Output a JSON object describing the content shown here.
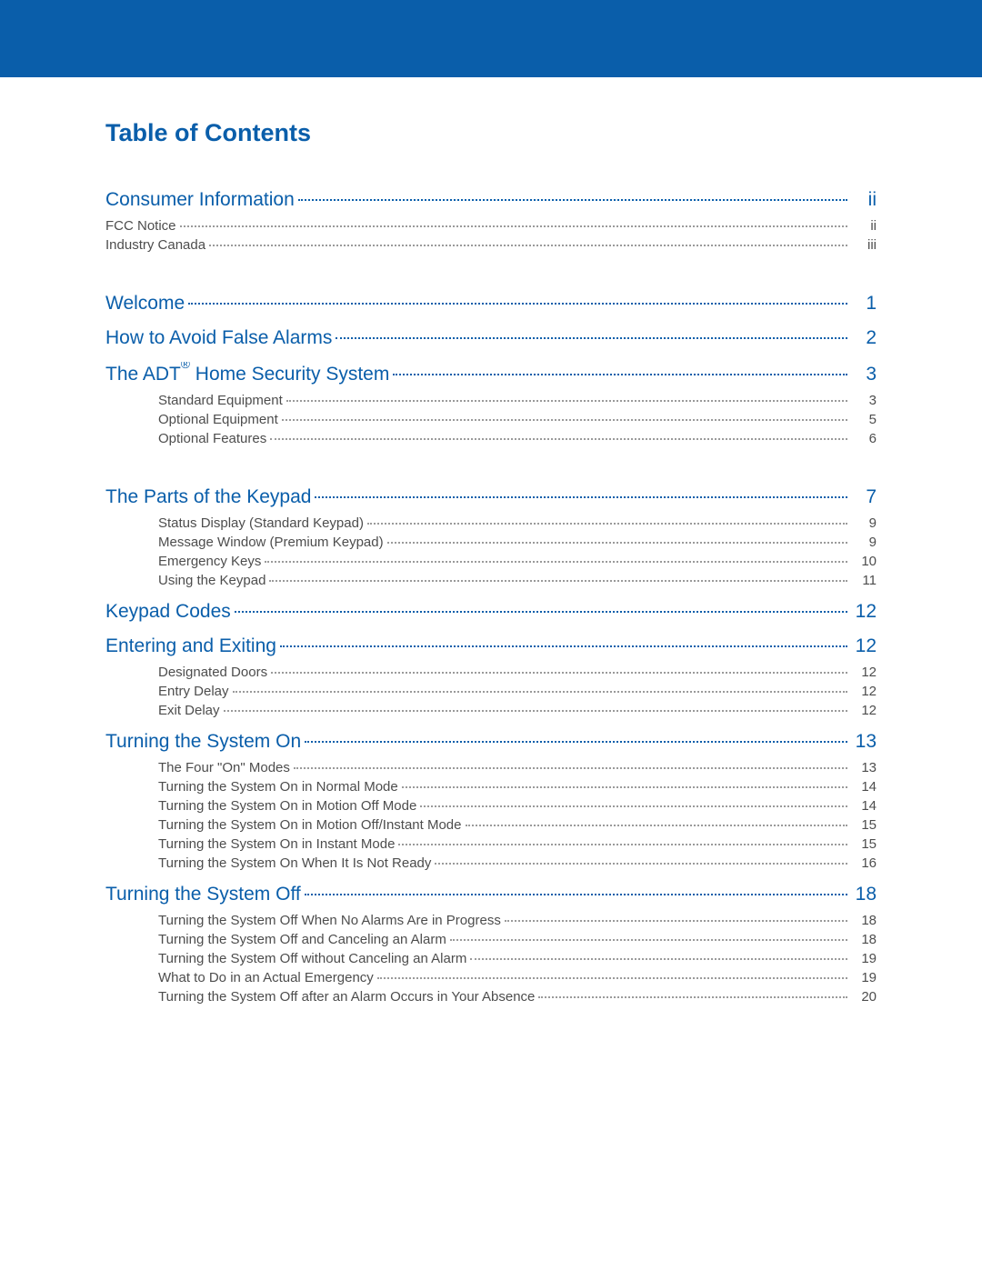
{
  "colors": {
    "brand_blue": "#0a5eaa",
    "body_text": "#4d4d4d",
    "dot_sub": "#9a9a9a",
    "background": "#ffffff"
  },
  "typography": {
    "title_fontsize": 27,
    "heading_fontsize": 21,
    "sub_fontsize": 15,
    "font_family": "Arial"
  },
  "title": "Table of Contents",
  "entries": [
    {
      "type": "heading",
      "label": "Consumer Information",
      "page": "ii"
    },
    {
      "type": "sub",
      "indent": 1,
      "label": "FCC Notice",
      "page": "ii"
    },
    {
      "type": "sub",
      "indent": 1,
      "label": "Industry Canada",
      "page": "iii"
    },
    {
      "type": "heading",
      "label": "Welcome",
      "page": "1",
      "gap_before": true
    },
    {
      "type": "heading",
      "label": "How to Avoid False Alarms",
      "page": "2"
    },
    {
      "type": "heading",
      "label_html": "The ADT<sup>®</sup> Home Security System",
      "label": "The ADT® Home Security System",
      "page": "3"
    },
    {
      "type": "sub",
      "indent": 2,
      "label": "Standard Equipment",
      "page": "3"
    },
    {
      "type": "sub",
      "indent": 2,
      "label": "Optional Equipment",
      "page": "5"
    },
    {
      "type": "sub",
      "indent": 2,
      "label": "Optional Features",
      "page": "6"
    },
    {
      "type": "heading",
      "label": "The Parts of the Keypad",
      "page": "7",
      "gap_before": true
    },
    {
      "type": "sub",
      "indent": 2,
      "label": "Status Display (Standard Keypad)",
      "page": "9"
    },
    {
      "type": "sub",
      "indent": 2,
      "label": "Message Window (Premium Keypad)",
      "page": "9"
    },
    {
      "type": "sub",
      "indent": 2,
      "label": "Emergency Keys",
      "page": "10"
    },
    {
      "type": "sub",
      "indent": 2,
      "label": "Using the Keypad",
      "page": "11"
    },
    {
      "type": "heading",
      "label": "Keypad Codes",
      "page": "12"
    },
    {
      "type": "heading",
      "label": "Entering and Exiting",
      "page": "12"
    },
    {
      "type": "sub",
      "indent": 2,
      "label": "Designated Doors",
      "page": "12"
    },
    {
      "type": "sub",
      "indent": 2,
      "label": "Entry Delay",
      "page": "12"
    },
    {
      "type": "sub",
      "indent": 2,
      "label": "Exit Delay",
      "page": "12"
    },
    {
      "type": "heading",
      "label": "Turning the System On",
      "page": "13"
    },
    {
      "type": "sub",
      "indent": 2,
      "label": "The Four \"On\" Modes",
      "page": "13"
    },
    {
      "type": "sub",
      "indent": 2,
      "label": "Turning the System On in Normal Mode",
      "page": "14"
    },
    {
      "type": "sub",
      "indent": 2,
      "label": "Turning the System On in Motion Off Mode",
      "page": "14"
    },
    {
      "type": "sub",
      "indent": 2,
      "label": "Turning the System On in Motion Off/Instant Mode",
      "page": "15"
    },
    {
      "type": "sub",
      "indent": 2,
      "label": "Turning the System On in Instant Mode",
      "page": "15"
    },
    {
      "type": "sub",
      "indent": 2,
      "label": "Turning the System On When It Is Not Ready",
      "page": "16"
    },
    {
      "type": "heading",
      "label": "Turning the System Off",
      "page": "18"
    },
    {
      "type": "sub",
      "indent": 2,
      "label": "Turning the System Off When No Alarms Are in Progress",
      "page": "18"
    },
    {
      "type": "sub",
      "indent": 2,
      "label": "Turning the System Off and Canceling an Alarm",
      "page": "18"
    },
    {
      "type": "sub",
      "indent": 2,
      "label": "Turning the System Off without Canceling an Alarm",
      "page": "19"
    },
    {
      "type": "sub",
      "indent": 2,
      "label": "What to Do in an Actual Emergency",
      "page": "19"
    },
    {
      "type": "sub",
      "indent": 2,
      "label": "Turning the System Off after an Alarm Occurs in Your Absence",
      "page": "20"
    }
  ]
}
